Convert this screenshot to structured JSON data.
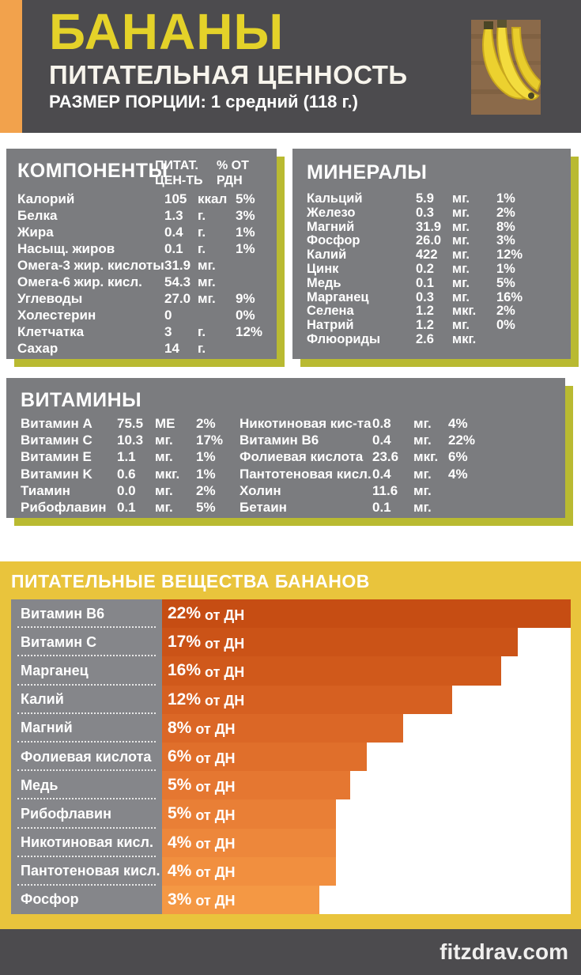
{
  "header": {
    "title": "БАНАНЫ",
    "subtitle": "ПИТАТЕЛЬНАЯ ЦЕННОСТЬ",
    "portion": "РАЗМЕР ПОРЦИИ: 1 средний (118 г.)",
    "image": "bananas-photo"
  },
  "components": {
    "title": "КОМПОНЕНТЫ",
    "col_value": "ПИТАТ. ЦЕН-ТЬ",
    "col_pct": "% ОТ РДН",
    "rows": [
      {
        "name": "Калорий",
        "value": "105",
        "unit": "ккал",
        "pct": "5%"
      },
      {
        "name": "Белка",
        "value": "1.3",
        "unit": "г.",
        "pct": "3%"
      },
      {
        "name": "Жира",
        "value": "0.4",
        "unit": "г.",
        "pct": "1%"
      },
      {
        "name": "Насыщ. жиров",
        "value": "0.1",
        "unit": "г.",
        "pct": "1%"
      },
      {
        "name": "Омега-3 жир. кислоты",
        "value": "31.9",
        "unit": "мг.",
        "pct": ""
      },
      {
        "name": "Омега-6 жир. кисл.",
        "value": "54.3",
        "unit": "мг.",
        "pct": ""
      },
      {
        "name": "Углеводы",
        "value": "27.0",
        "unit": "мг.",
        "pct": "9%"
      },
      {
        "name": "Холестерин",
        "value": "0",
        "unit": "",
        "pct": "0%"
      },
      {
        "name": "Клетчатка",
        "value": "3",
        "unit": "г.",
        "pct": "12%"
      },
      {
        "name": "Сахар",
        "value": "14",
        "unit": "г.",
        "pct": ""
      }
    ]
  },
  "minerals": {
    "title": "МИНЕРАЛЫ",
    "rows": [
      {
        "name": "Кальций",
        "value": "5.9",
        "unit": "мг.",
        "pct": "1%"
      },
      {
        "name": "Железо",
        "value": "0.3",
        "unit": "мг.",
        "pct": "2%"
      },
      {
        "name": "Магний",
        "value": "31.9",
        "unit": "мг.",
        "pct": "8%"
      },
      {
        "name": "Фосфор",
        "value": "26.0",
        "unit": "мг.",
        "pct": "3%"
      },
      {
        "name": "Калий",
        "value": "422",
        "unit": "мг.",
        "pct": "12%"
      },
      {
        "name": "Цинк",
        "value": "0.2",
        "unit": "мг.",
        "pct": "1%"
      },
      {
        "name": "Медь",
        "value": "0.1",
        "unit": "мг.",
        "pct": "5%"
      },
      {
        "name": "Марганец",
        "value": "0.3",
        "unit": "мг.",
        "pct": "16%"
      },
      {
        "name": "Селена",
        "value": "1.2",
        "unit": "мкг.",
        "pct": "2%"
      },
      {
        "name": "Натрий",
        "value": "1.2",
        "unit": "мг.",
        "pct": "0%"
      },
      {
        "name": "Флюориды",
        "value": "2.6",
        "unit": "мкг.",
        "pct": ""
      }
    ]
  },
  "vitamins": {
    "title": "ВИТАМИНЫ",
    "left": [
      {
        "name": "Витамин A",
        "value": "75.5",
        "unit": "МЕ",
        "pct": "2%"
      },
      {
        "name": "Витамин C",
        "value": "10.3",
        "unit": "мг.",
        "pct": "17%"
      },
      {
        "name": "Витамин E",
        "value": "1.1",
        "unit": "мг.",
        "pct": "1%"
      },
      {
        "name": "Витамин K",
        "value": "0.6",
        "unit": "мкг.",
        "pct": "1%"
      },
      {
        "name": "Тиамин",
        "value": "0.0",
        "unit": "мг.",
        "pct": "2%"
      },
      {
        "name": "Рибофлавин",
        "value": "0.1",
        "unit": "мг.",
        "pct": "5%"
      }
    ],
    "right": [
      {
        "name": "Никотиновая кис-та",
        "value": "0.8",
        "unit": "мг.",
        "pct": "4%"
      },
      {
        "name": "Витамин B6",
        "value": "0.4",
        "unit": "мг.",
        "pct": "22%"
      },
      {
        "name": "Фолиевая кислота",
        "value": "23.6",
        "unit": "мкг.",
        "pct": "6%"
      },
      {
        "name": "Пантотеновая кисл.",
        "value": "0.4",
        "unit": "мг.",
        "pct": "4%"
      },
      {
        "name": "Холин",
        "value": "11.6",
        "unit": "мг.",
        "pct": ""
      },
      {
        "name": "Бетаин",
        "value": "0.1",
        "unit": "мг.",
        "pct": ""
      }
    ]
  },
  "chart_data": {
    "type": "bar",
    "orientation": "horizontal",
    "title": "ПИТАТЕЛЬНЫЕ ВЕЩЕСТВА БАНАНОВ",
    "categories": [
      "Витамин B6",
      "Витамин C",
      "Марганец",
      "Калий",
      "Магний",
      "Фолиевая кислота",
      "Медь",
      "Рибофлавин",
      "Никотиновая кисл.",
      "Пантотеновая кисл.",
      "Фосфор"
    ],
    "values": [
      22,
      17,
      16,
      12,
      8,
      6,
      5,
      5,
      4,
      4,
      3
    ],
    "value_suffix": "от ДН",
    "bar_labels": [
      "22% от ДН",
      "17% от ДН",
      "16% от ДН",
      "12% от ДН",
      "8% от ДН",
      "6% от ДН",
      "5% от ДН",
      "5% от ДН",
      "4% от ДН",
      "4% от ДН",
      "3% от ДН"
    ],
    "bar_length_pct": [
      100,
      87,
      83,
      71,
      59,
      50,
      46,
      42.5,
      42.5,
      42.5,
      38.5
    ],
    "bar_colors": [
      "#c64d13",
      "#cb5317",
      "#d0591b",
      "#d66021",
      "#db6726",
      "#e06f2b",
      "#e57731",
      "#e97f36",
      "#ed873b",
      "#f18f3f",
      "#f49844"
    ],
    "xlim": [
      0,
      22
    ],
    "grid": false,
    "legend": false
  },
  "footer": {
    "site": "fitzdrav.com"
  },
  "colors": {
    "header_bg": "#4c4b4e",
    "orange_stripe": "#f2a24c",
    "title_yellow": "#e4d229",
    "panel_gray": "#7b7c7f",
    "accent_olive": "#b9ba31",
    "chart_bg_yellow": "#e9c43c",
    "chart_label_col": "#85868a",
    "footer_bg": "#4c4b4e"
  }
}
